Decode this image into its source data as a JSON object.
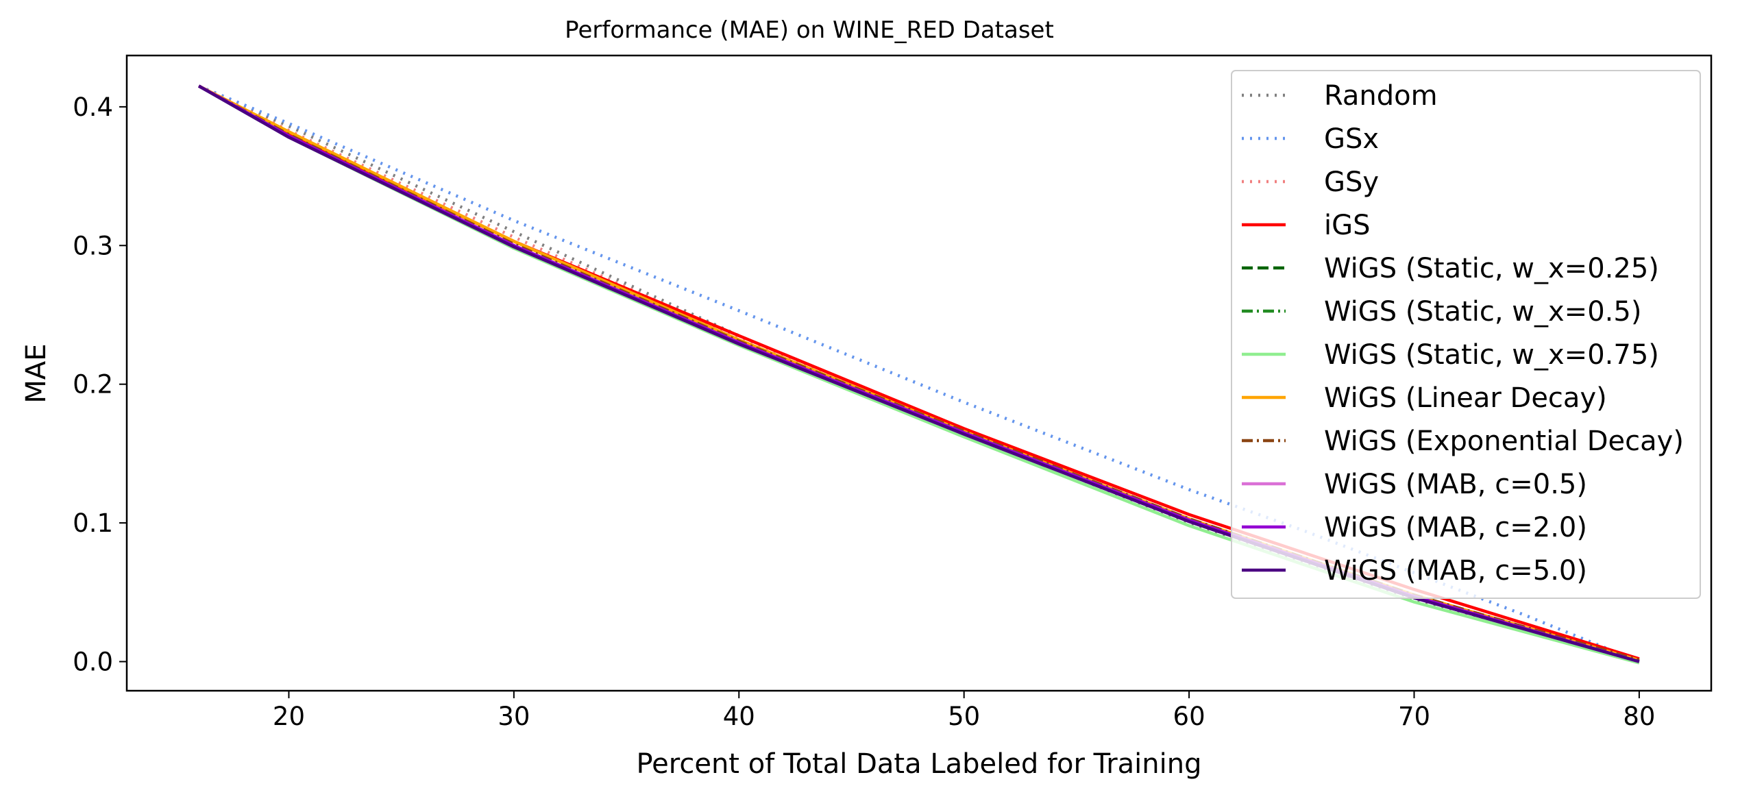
{
  "chart_data": {
    "type": "line",
    "title": "Performance (MAE) on WINE_RED Dataset",
    "xlabel": "Percent of Total Data Labeled for Training",
    "ylabel": "MAE",
    "xlim": [
      12.8,
      83.2
    ],
    "ylim": [
      -0.021,
      0.437
    ],
    "xticks": [
      "20",
      "30",
      "40",
      "50",
      "60",
      "70",
      "80"
    ],
    "yticks": [
      "0.0",
      "0.1",
      "0.2",
      "0.3",
      "0.4"
    ],
    "grid": false,
    "legend_position": "top-right",
    "series": [
      {
        "name": "Random",
        "color": "#808080",
        "dash": "dotted",
        "x": [
          16,
          20,
          30,
          40,
          50,
          60,
          70,
          80
        ],
        "y": [
          0.415,
          0.386,
          0.31,
          0.235,
          0.165,
          0.1,
          0.045,
          0.0
        ]
      },
      {
        "name": "GSx",
        "color": "#6495ED",
        "dash": "dotted",
        "x": [
          16,
          20,
          30,
          40,
          50,
          60,
          65,
          70,
          75,
          80
        ],
        "y": [
          0.415,
          0.388,
          0.318,
          0.253,
          0.187,
          0.124,
          0.095,
          0.064,
          0.033,
          0.0
        ]
      },
      {
        "name": "GSy",
        "color": "#F08080",
        "dash": "dotted",
        "x": [
          16,
          20,
          30,
          40,
          50,
          60,
          70,
          80
        ],
        "y": [
          0.415,
          0.383,
          0.306,
          0.234,
          0.166,
          0.102,
          0.048,
          0.001
        ]
      },
      {
        "name": "iGS",
        "color": "#FF0000",
        "dash": "solid",
        "x": [
          16,
          20,
          30,
          40,
          50,
          60,
          70,
          80
        ],
        "y": [
          0.415,
          0.381,
          0.303,
          0.235,
          0.168,
          0.106,
          0.052,
          0.002
        ]
      },
      {
        "name": "WiGS (Static, w_x=0.25)",
        "color": "#006400",
        "dash": "dashed",
        "x": [
          16,
          20,
          30,
          40,
          50,
          60,
          70,
          80
        ],
        "y": [
          0.415,
          0.379,
          0.3,
          0.23,
          0.165,
          0.102,
          0.047,
          0.0
        ]
      },
      {
        "name": "WiGS (Static, w_x=0.5)",
        "color": "#228B22",
        "dash": "dashdot",
        "x": [
          16,
          20,
          30,
          40,
          50,
          60,
          70,
          80
        ],
        "y": [
          0.415,
          0.379,
          0.3,
          0.23,
          0.165,
          0.101,
          0.046,
          0.0
        ]
      },
      {
        "name": "WiGS (Static, w_x=0.75)",
        "color": "#90EE90",
        "dash": "solid",
        "x": [
          16,
          20,
          30,
          40,
          50,
          60,
          70,
          80
        ],
        "y": [
          0.415,
          0.378,
          0.298,
          0.228,
          0.162,
          0.098,
          0.043,
          -0.001
        ]
      },
      {
        "name": "WiGS (Linear Decay)",
        "color": "#FFA500",
        "dash": "solid",
        "x": [
          16,
          20,
          30,
          40,
          50,
          60,
          70,
          80
        ],
        "y": [
          0.415,
          0.382,
          0.303,
          0.232,
          0.166,
          0.103,
          0.048,
          0.001
        ]
      },
      {
        "name": "WiGS (Exponential Decay)",
        "color": "#8B4513",
        "dash": "dashdot",
        "x": [
          16,
          20,
          30,
          40,
          50,
          60,
          70,
          80
        ],
        "y": [
          0.415,
          0.38,
          0.301,
          0.231,
          0.166,
          0.103,
          0.048,
          0.001
        ]
      },
      {
        "name": "WiGS (MAB, c=0.5)",
        "color": "#DA70D6",
        "dash": "solid",
        "x": [
          16,
          20,
          30,
          40,
          50,
          60,
          70,
          80
        ],
        "y": [
          0.415,
          0.379,
          0.3,
          0.23,
          0.165,
          0.102,
          0.047,
          0.0
        ]
      },
      {
        "name": "WiGS (MAB, c=2.0)",
        "color": "#9400D3",
        "dash": "solid",
        "x": [
          16,
          20,
          30,
          40,
          50,
          60,
          70,
          80
        ],
        "y": [
          0.415,
          0.379,
          0.3,
          0.23,
          0.165,
          0.102,
          0.047,
          0.0
        ]
      },
      {
        "name": "WiGS (MAB, c=5.0)",
        "color": "#4B0082",
        "dash": "solid",
        "x": [
          16,
          20,
          30,
          40,
          50,
          60,
          70,
          80
        ],
        "y": [
          0.415,
          0.378,
          0.299,
          0.229,
          0.164,
          0.101,
          0.046,
          0.0
        ]
      }
    ]
  }
}
